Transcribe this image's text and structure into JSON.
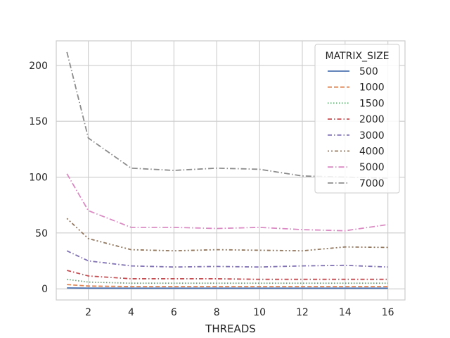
{
  "chart_data": {
    "type": "line",
    "xlabel": "THREADS",
    "ylabel": "",
    "xlim": [
      0.5,
      16.8
    ],
    "ylim": [
      -10,
      222
    ],
    "x_ticks": [
      2,
      4,
      6,
      8,
      10,
      12,
      14,
      16
    ],
    "y_ticks": [
      0,
      50,
      100,
      150,
      200
    ],
    "grid": true,
    "legend": {
      "title": "MATRIX_SIZE",
      "placement": "top-right"
    },
    "x": [
      1,
      2,
      4,
      6,
      8,
      10,
      12,
      14,
      16
    ],
    "series": [
      {
        "name": "500",
        "color": "#4c72b0",
        "dash": "solid",
        "values": [
          0.8,
          0.6,
          0.5,
          0.5,
          0.5,
          0.5,
          0.5,
          0.5,
          0.5
        ]
      },
      {
        "name": "1000",
        "color": "#dd8452",
        "dash": "dashed",
        "values": [
          3.8,
          2.5,
          2.0,
          2.0,
          2.0,
          2.0,
          2.0,
          2.0,
          2.0
        ]
      },
      {
        "name": "1500",
        "color": "#55a868",
        "dash": "dotted",
        "values": [
          8.5,
          6.0,
          5.0,
          5.0,
          5.0,
          5.0,
          5.0,
          5.0,
          5.0
        ]
      },
      {
        "name": "2000",
        "color": "#c44e52",
        "dash": "dashdot",
        "values": [
          16.5,
          11.5,
          9.0,
          9.0,
          9.0,
          8.5,
          8.5,
          8.5,
          8.5
        ]
      },
      {
        "name": "3000",
        "color": "#8172b3",
        "dash": "dashdot",
        "values": [
          34.0,
          25.0,
          20.5,
          19.5,
          20.0,
          19.5,
          20.5,
          21.0,
          19.5
        ]
      },
      {
        "name": "4000",
        "color": "#937860",
        "dash": "dotdash",
        "values": [
          63.0,
          45.0,
          35.0,
          34.0,
          35.0,
          34.5,
          34.0,
          37.5,
          37.0
        ]
      },
      {
        "name": "5000",
        "color": "#da8bc3",
        "dash": "dashdotlong",
        "values": [
          103.0,
          70.0,
          55.0,
          55.0,
          54.0,
          55.0,
          53.0,
          52.0,
          57.5
        ]
      },
      {
        "name": "7000",
        "color": "#8c8c8c",
        "dash": "dashdotlong",
        "values": [
          212.0,
          135.0,
          108.0,
          106.0,
          108.0,
          107.0,
          101.0,
          100.0,
          99.0
        ]
      }
    ]
  }
}
